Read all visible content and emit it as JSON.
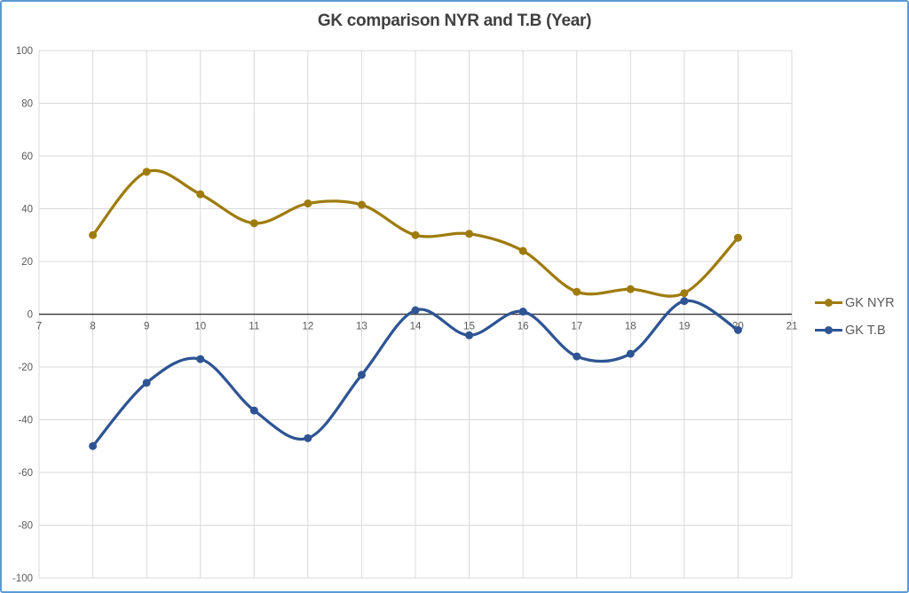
{
  "title": "GK comparison NYR and T.B (Year)",
  "colors": {
    "border": "#5B9BD5",
    "gridline": "#D9D9D9",
    "zero_axis": "#404040",
    "tick_text": "#595959",
    "title_text": "#404040",
    "series_nyr": "#9E7B0B",
    "series_tb": "#2E5494"
  },
  "chart_data": {
    "type": "line",
    "title": "GK comparison NYR and T.B (Year)",
    "x": [
      8,
      9,
      10,
      11,
      12,
      13,
      14,
      15,
      16,
      17,
      18,
      19,
      20
    ],
    "series": [
      {
        "name": "GK NYR",
        "color": "#9E7B0B",
        "values": [
          30,
          54,
          45.5,
          34.5,
          42,
          41.5,
          30,
          30.5,
          24,
          8.5,
          9.5,
          8,
          29
        ]
      },
      {
        "name": "GK T.B",
        "color": "#2E5494",
        "values": [
          -50,
          -26,
          -17,
          -36.5,
          -47,
          -23,
          1.5,
          -8,
          1,
          -16,
          -15,
          5,
          -6
        ]
      }
    ],
    "xlabel": "",
    "ylabel": "",
    "xlim": [
      7,
      21
    ],
    "ylim": [
      -100,
      100
    ],
    "x_ticks": [
      7,
      8,
      9,
      10,
      11,
      12,
      13,
      14,
      15,
      16,
      17,
      18,
      19,
      20,
      21
    ],
    "y_ticks": [
      -100,
      -80,
      -60,
      -40,
      -20,
      0,
      20,
      40,
      60,
      80,
      100
    ],
    "grid": true,
    "smooth": true,
    "legend_position": "right"
  }
}
